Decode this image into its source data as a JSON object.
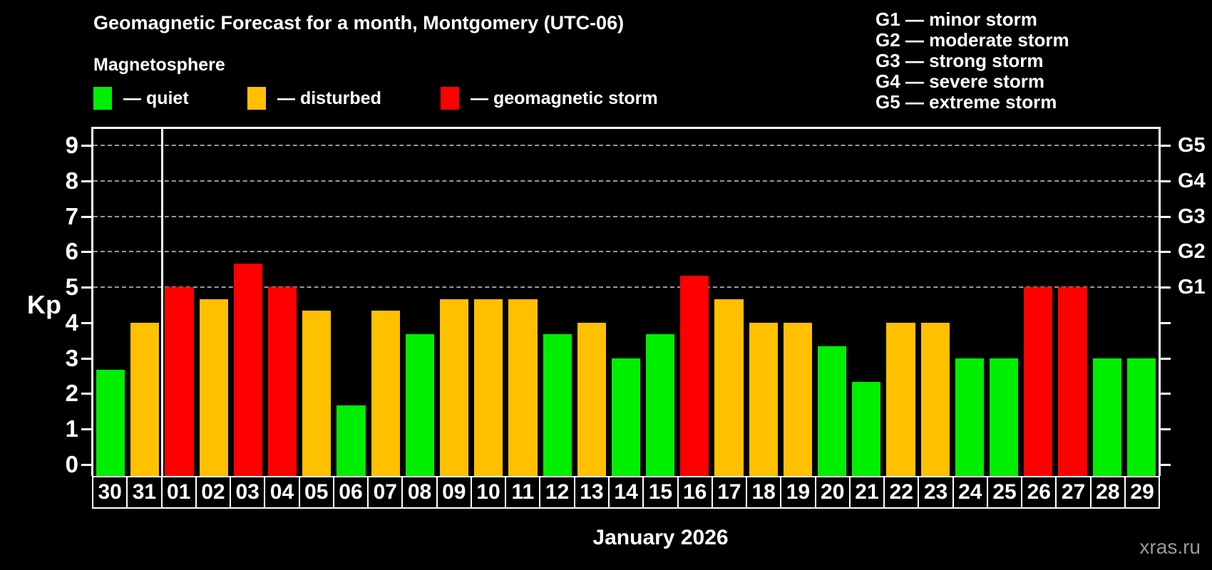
{
  "header": {
    "title": "Geomagnetic Forecast for a month, Montgomery (UTC-06)",
    "subtitle": "Magnetosphere"
  },
  "legend": {
    "quiet": {
      "label": "— quiet",
      "color": "#00ee00"
    },
    "disturbed": {
      "label": "— disturbed",
      "color": "#ffc000"
    },
    "storm": {
      "label": "— geomagnetic storm",
      "color": "#ff0000"
    }
  },
  "storm_scale_legend": [
    "G1 — minor storm",
    "G2 — moderate storm",
    "G3 — strong storm",
    "G4 — severe storm",
    "G5 — extreme storm"
  ],
  "colors": {
    "background": "#000000",
    "text": "#ffffff",
    "grid": "#999999",
    "watermark": "#999999",
    "quiet": "#00ee00",
    "disturbed": "#ffc000",
    "storm": "#ff0000"
  },
  "chart_data": {
    "type": "bar",
    "title": "Geomagnetic Forecast for a month, Montgomery (UTC-06)",
    "ylabel": "Kp",
    "xlabel": "January 2026",
    "ylim": [
      0,
      9
    ],
    "grid": "horizontal dashed lines at Kp 5-9 (storm levels) only",
    "legend_position": "top-left (quiet/disturbed/storm) and top-right (G1-G5)",
    "yticks_left": [
      0,
      1,
      2,
      3,
      4,
      5,
      6,
      7,
      8,
      9
    ],
    "gridlines_at_kp": [
      5,
      6,
      7,
      8,
      9
    ],
    "yticks_right": [
      {
        "kp": 5,
        "label": "G1"
      },
      {
        "kp": 6,
        "label": "G2"
      },
      {
        "kp": 7,
        "label": "G3"
      },
      {
        "kp": 8,
        "label": "G4"
      },
      {
        "kp": 9,
        "label": "G5"
      }
    ],
    "month_separator_after_index": 1,
    "categories": [
      "30",
      "31",
      "01",
      "02",
      "03",
      "04",
      "05",
      "06",
      "07",
      "08",
      "09",
      "10",
      "11",
      "12",
      "13",
      "14",
      "15",
      "16",
      "17",
      "18",
      "19",
      "20",
      "21",
      "22",
      "23",
      "24",
      "25",
      "26",
      "27",
      "28",
      "29"
    ],
    "values": [
      2.67,
      4.0,
      5.0,
      4.67,
      5.67,
      5.0,
      4.33,
      1.67,
      4.33,
      3.67,
      4.67,
      4.67,
      4.67,
      3.67,
      4.0,
      3.0,
      3.67,
      5.33,
      4.67,
      4.0,
      4.0,
      3.33,
      2.33,
      4.0,
      4.0,
      3.0,
      3.0,
      5.0,
      5.0,
      3.0,
      3.0
    ],
    "states": [
      "quiet",
      "disturbed",
      "storm",
      "disturbed",
      "storm",
      "storm",
      "disturbed",
      "quiet",
      "disturbed",
      "quiet",
      "disturbed",
      "disturbed",
      "disturbed",
      "quiet",
      "disturbed",
      "quiet",
      "quiet",
      "storm",
      "disturbed",
      "disturbed",
      "disturbed",
      "quiet",
      "quiet",
      "disturbed",
      "disturbed",
      "quiet",
      "quiet",
      "storm",
      "storm",
      "quiet",
      "quiet"
    ]
  },
  "footer": {
    "month_label": "January 2026",
    "watermark": "xras.ru"
  }
}
